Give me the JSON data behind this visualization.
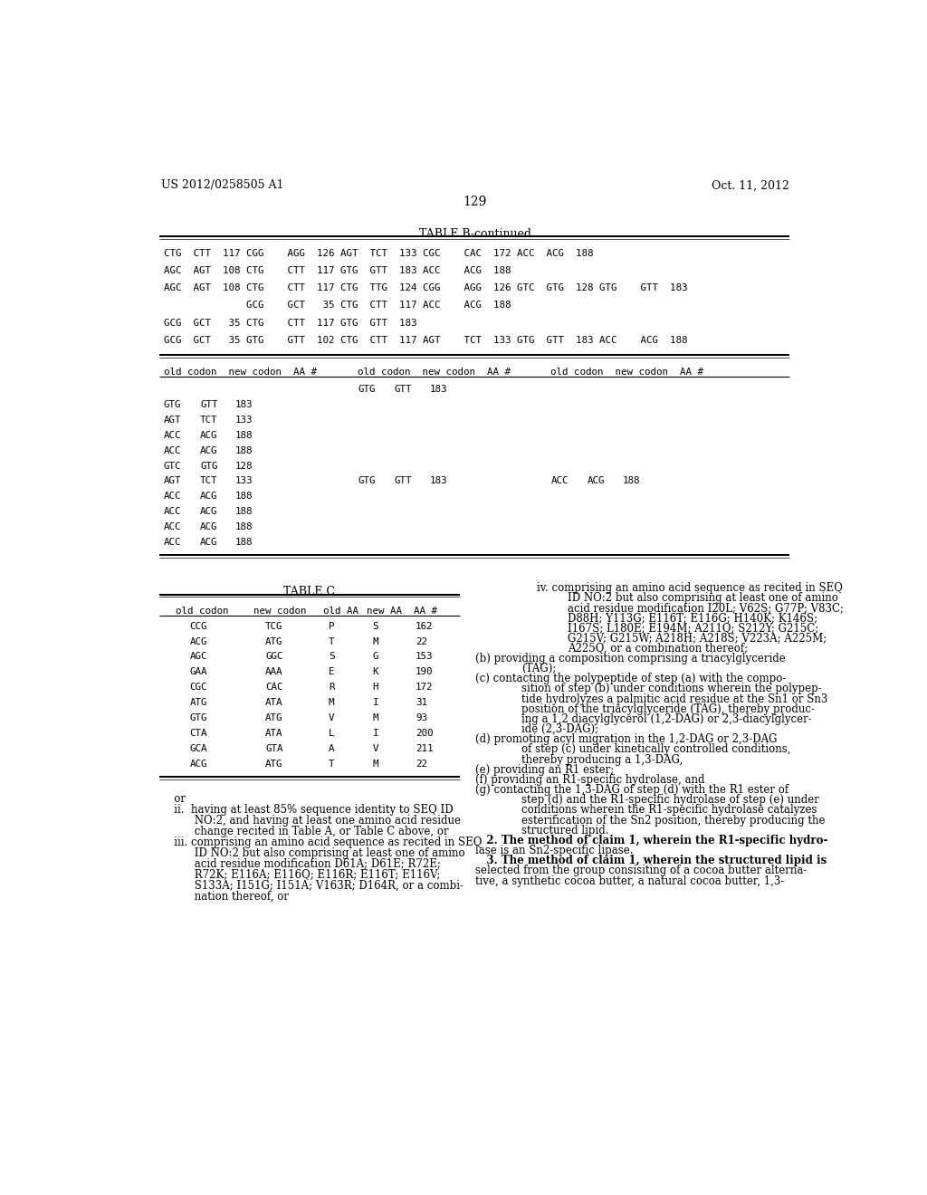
{
  "header_left": "US 2012/0258505 A1",
  "header_right": "Oct. 11, 2012",
  "page_number": "129",
  "table_b_title": "TABLE B-continued",
  "table_b_upper_rows": [
    "CTG  CTT  117 CGG    AGG  126 AGT  TCT  133 CGC    CAC  172 ACC  ACG  188",
    "AGC  AGT  108 CTG    CTT  117 GTG  GTT  183 ACC    ACG  188",
    "AGC  AGT  108 CTG    CTT  117 CTG  TTG  124 CGG    AGG  126 GTC  GTG  128 GTG    GTT  183",
    "              GCG    GCT   35 CTG  CTT  117 ACC    ACG  188",
    "GCG  GCT   35 CTG    CTT  117 GTG  GTT  183",
    "GCG  GCT   35 GTG    GTT  102 CTG  CTT  117 AGT    TCT  133 GTG  GTT  183 ACC    ACG  188"
  ],
  "table_b_hdr": "old codon  new codon  AA #",
  "table_c_title": "TABLE C",
  "table_c_header": [
    "old codon",
    "new codon",
    "old AA",
    "new AA",
    "AA #"
  ],
  "table_c_rows": [
    [
      "CCG",
      "TCG",
      "P",
      "S",
      "162"
    ],
    [
      "ACG",
      "ATG",
      "T",
      "M",
      "22"
    ],
    [
      "AGC",
      "GGC",
      "S",
      "G",
      "153"
    ],
    [
      "GAA",
      "AAA",
      "E",
      "K",
      "190"
    ],
    [
      "CGC",
      "CAC",
      "R",
      "H",
      "172"
    ],
    [
      "ATG",
      "ATA",
      "M",
      "I",
      "31"
    ],
    [
      "GTG",
      "ATG",
      "V",
      "M",
      "93"
    ],
    [
      "CTA",
      "ATA",
      "L",
      "I",
      "200"
    ],
    [
      "GCA",
      "GTA",
      "A",
      "V",
      "211"
    ],
    [
      "ACG",
      "ATG",
      "T",
      "M",
      "22"
    ]
  ],
  "right_text": [
    {
      "indent": 16,
      "text": "iv. comprising an amino acid sequence as recited in SEQ"
    },
    {
      "indent": 24,
      "text": "ID NO:2 but also comprising at least one of amino"
    },
    {
      "indent": 24,
      "text": "acid residue modification I20L; V62S; G77P; V83C;"
    },
    {
      "indent": 24,
      "text": "D88H; Y113G; E116T; E116G; H140K; K146S;"
    },
    {
      "indent": 24,
      "text": "I167S; L180E; E194M; A211Q; S212Y; G215C;"
    },
    {
      "indent": 24,
      "text": "G215V; G215W; A218H; A218S; V223A; A225M;"
    },
    {
      "indent": 24,
      "text": "A225Q, or a combination thereof;"
    },
    {
      "indent": 0,
      "text": "(b) providing a composition comprising a triacylglyceride"
    },
    {
      "indent": 12,
      "text": "(TAG);"
    },
    {
      "indent": 0,
      "text": "(c) contacting the polypeptide of step (a) with the compo-"
    },
    {
      "indent": 12,
      "text": "sition of step (b) under conditions wherein the polypep-"
    },
    {
      "indent": 12,
      "text": "tide hydrolyzes a palmitic acid residue at the Sn1 or Sn3"
    },
    {
      "indent": 12,
      "text": "position of the triacylglyceride (TAG), thereby produc-"
    },
    {
      "indent": 12,
      "text": "ing a 1,2 diacylglycerol (1,2-DAG) or 2,3-diacylglycer-"
    },
    {
      "indent": 12,
      "text": "ide (2,3-DAG);"
    },
    {
      "indent": 0,
      "text": "(d) promoting acyl migration in the 1,2-DAG or 2,3-DAG"
    },
    {
      "indent": 12,
      "text": "of step (c) under kinetically controlled conditions,"
    },
    {
      "indent": 12,
      "text": "thereby producing a 1,3-DAG,"
    },
    {
      "indent": 0,
      "text": "(e) providing an R1 ester;"
    },
    {
      "indent": 0,
      "text": "(f) providing an R1-specific hydrolase, and"
    },
    {
      "indent": 0,
      "text": "(g) contacting the 1,3-DAG of step (d) with the R1 ester of"
    },
    {
      "indent": 12,
      "text": "step (d) and the R1-specific hydrolase of step (e) under"
    },
    {
      "indent": 12,
      "text": "conditions wherein the R1-specific hydrolase catalyzes"
    },
    {
      "indent": 12,
      "text": "esterification of the Sn2 position, thereby producing the"
    },
    {
      "indent": 12,
      "text": "structured lipid."
    },
    {
      "indent": 0,
      "text": "   2. The method of claim 1, wherein the R1-specific hydro-"
    },
    {
      "indent": 0,
      "text": "lase is an Sn2-specific lipase."
    },
    {
      "indent": 0,
      "text": "   3. The method of claim 1, wherein the structured lipid is"
    },
    {
      "indent": 0,
      "text": "selected from the group consisiting of a cocoa butter alterna-"
    },
    {
      "indent": 0,
      "text": "tive, a synthetic cocoa butter, a natural cocoa butter, 1,3-"
    }
  ],
  "bottom_left_text": [
    "   or",
    "   ii.  having at least 85% sequence identity to SEQ ID",
    "         NO:2, and having at least one amino acid residue",
    "         change recited in Table A, or Table C above, or",
    "   iii. comprising an amino acid sequence as recited in SEQ",
    "         ID NO:2 but also comprising at least one of amino",
    "         acid residue modification D61A; D61E; R72E;",
    "         R72K; E116A; E116Q; E116R; E116T; E116V;",
    "         S133A; I151G; I151A; V163R; D164R, or a combi-",
    "         nation thereof, or"
  ]
}
